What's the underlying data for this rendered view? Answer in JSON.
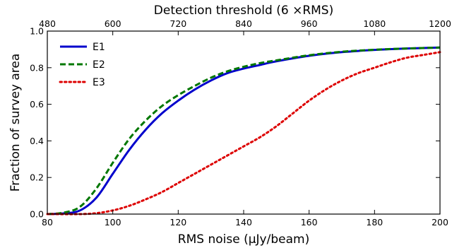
{
  "chart_data": {
    "type": "line",
    "xlabel": "RMS noise (μJy/beam)",
    "ylabel": "Fraction of survey area",
    "top_xlabel": "Detection threshold (6 ×RMS)",
    "xlim": [
      80,
      200
    ],
    "ylim": [
      0,
      1.0
    ],
    "x_ticks": [
      "80",
      "100",
      "120",
      "140",
      "160",
      "180",
      "200"
    ],
    "y_ticks": [
      "0.0",
      "0.2",
      "0.4",
      "0.6",
      "0.8",
      "1.0"
    ],
    "top_ticks": [
      "480",
      "600",
      "720",
      "840",
      "960",
      "1080",
      "1200"
    ],
    "legend_position": "top-left",
    "grid": false,
    "series": [
      {
        "name": "E1",
        "color": "#0000cc",
        "style": "solid",
        "x": [
          80,
          85,
          90,
          95,
          100,
          105,
          110,
          115,
          120,
          125,
          130,
          135,
          140,
          145,
          150,
          160,
          170,
          180,
          190,
          200
        ],
        "y": [
          0.0,
          0.004,
          0.02,
          0.09,
          0.22,
          0.35,
          0.46,
          0.55,
          0.62,
          0.68,
          0.73,
          0.77,
          0.795,
          0.815,
          0.835,
          0.865,
          0.885,
          0.897,
          0.905,
          0.91
        ]
      },
      {
        "name": "E2",
        "color": "#007700",
        "style": "dashed",
        "x": [
          80,
          85,
          90,
          95,
          100,
          105,
          110,
          115,
          120,
          125,
          130,
          135,
          140,
          145,
          150,
          160,
          170,
          180,
          190,
          200
        ],
        "y": [
          0.0,
          0.008,
          0.04,
          0.14,
          0.28,
          0.41,
          0.51,
          0.59,
          0.65,
          0.7,
          0.745,
          0.78,
          0.805,
          0.825,
          0.84,
          0.868,
          0.887,
          0.898,
          0.905,
          0.91
        ]
      },
      {
        "name": "E3",
        "color": "#dd0000",
        "style": "dotted",
        "x": [
          80,
          90,
          95,
          100,
          105,
          110,
          115,
          120,
          125,
          130,
          135,
          140,
          145,
          150,
          155,
          160,
          165,
          170,
          175,
          180,
          185,
          190,
          195,
          200
        ],
        "y": [
          0.0,
          0.0,
          0.005,
          0.02,
          0.045,
          0.08,
          0.12,
          0.17,
          0.22,
          0.27,
          0.32,
          0.37,
          0.42,
          0.48,
          0.55,
          0.62,
          0.68,
          0.73,
          0.77,
          0.8,
          0.83,
          0.855,
          0.87,
          0.885
        ]
      }
    ]
  }
}
